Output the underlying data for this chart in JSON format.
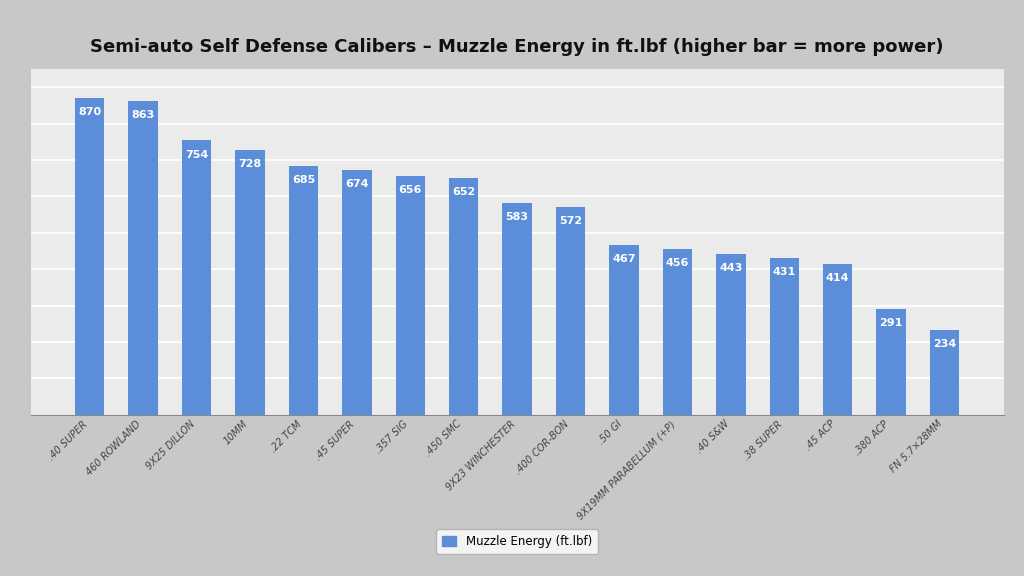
{
  "title": "Semi-auto Self Defense Calibers – Muzzle Energy in ft.lbf (higher bar = more power)",
  "categories": [
    ".40 SUPER",
    "460 ROWLAND",
    "9X25 DILLON",
    "10MM",
    ".22 TCM",
    ".45 SUPER",
    ".357 SIG",
    ".450 SMC",
    "9X23 WINCHESTER",
    ".400 COR-BON",
    ".50 GI",
    "9X19MM PARABELLUM (+P)",
    ".40 S&W",
    ".38 SUPER",
    ".45 ACP",
    ".380 ACP",
    "FN 5.7×28MM"
  ],
  "values": [
    870,
    863,
    754,
    728,
    685,
    674,
    656,
    652,
    583,
    572,
    467,
    456,
    443,
    431,
    414,
    291,
    234
  ],
  "bar_color": "#5B8DD9",
  "label_color": "#FFFFFF",
  "background_color": "#CCCCCC",
  "plot_bg_color": "#E8E8E8",
  "grid_color": "#FFFFFF",
  "title_fontsize": 13,
  "legend_label": "Muzzle Energy (ft.lbf)",
  "ylim": [
    0,
    950
  ]
}
